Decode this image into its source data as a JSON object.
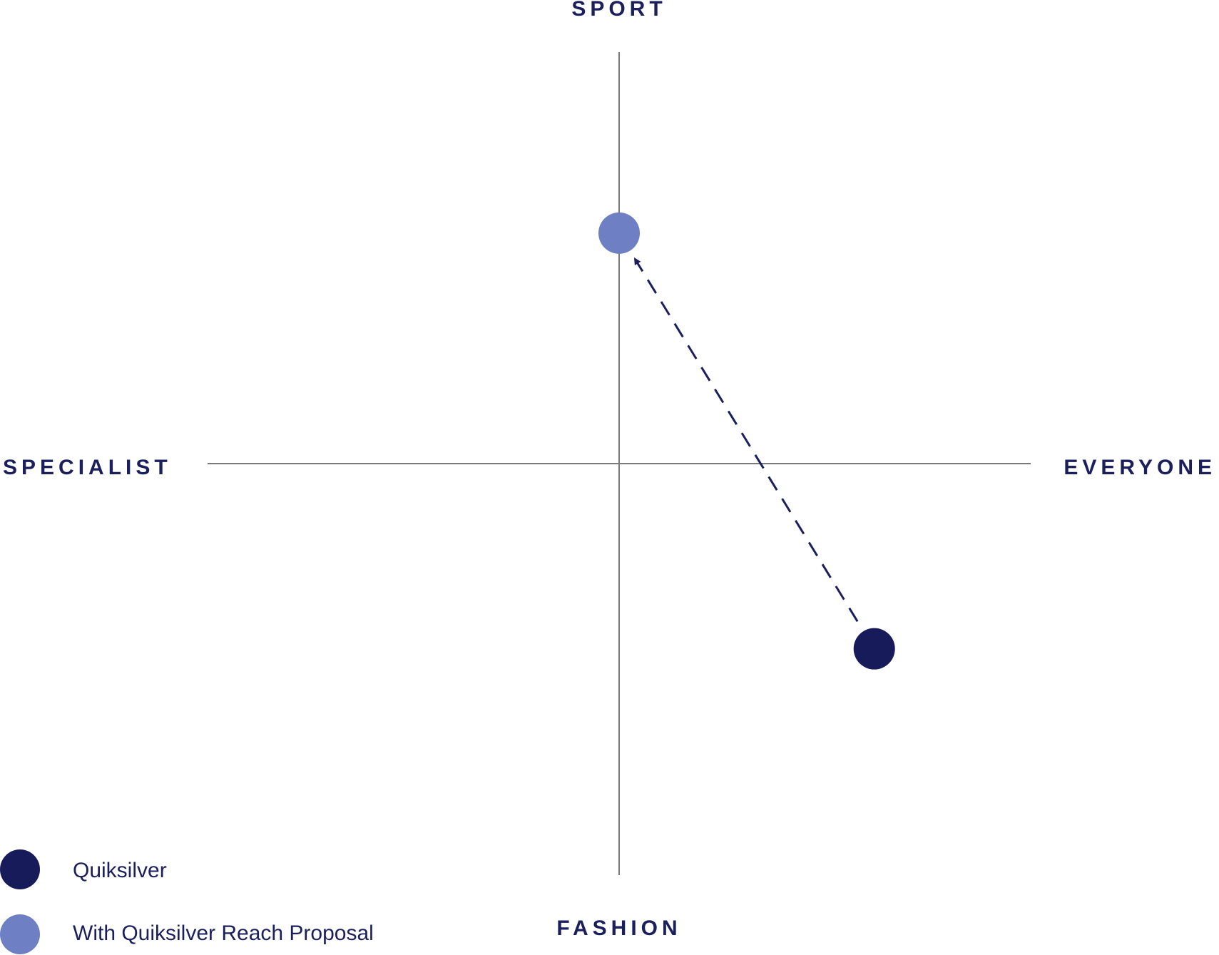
{
  "chart_data": {
    "type": "scatter",
    "title": "",
    "quadrant_labels": {
      "top": "SPORT",
      "bottom": "FASHION",
      "left": "SPECIALIST",
      "right": "EVERYONE"
    },
    "xlim": [
      -1,
      1
    ],
    "ylim": [
      -1,
      1
    ],
    "grid": false,
    "legend_position": "bottom-left",
    "series": [
      {
        "name": "Quiksilver",
        "color": "#181b5a",
        "points": [
          {
            "x": 0.62,
            "y": -0.45
          }
        ]
      },
      {
        "name": "With Quiksilver Reach Proposal",
        "color": "#6f7fc4",
        "points": [
          {
            "x": 0.0,
            "y": 0.56
          }
        ]
      }
    ],
    "arrow": {
      "from_series": 0,
      "to_series": 1,
      "style": "dashed",
      "color": "#1b1f5c"
    },
    "colors": {
      "axis": "#7a7a7a",
      "text": "#1b1f5c"
    }
  }
}
